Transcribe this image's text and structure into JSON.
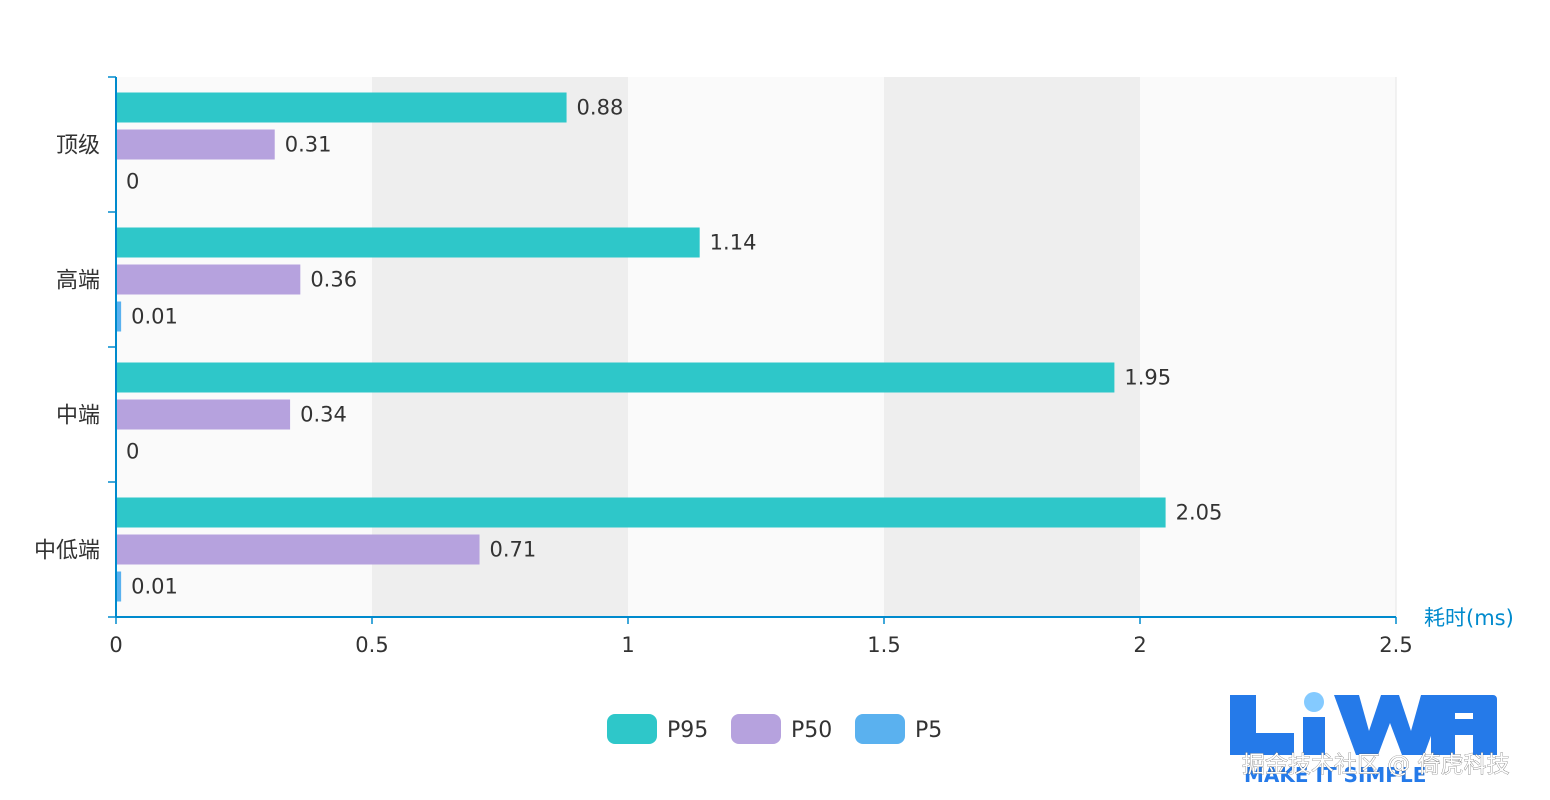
{
  "chart_data": {
    "type": "bar",
    "orientation": "horizontal",
    "categories": [
      "顶级",
      "高端",
      "中端",
      "中低端"
    ],
    "series": [
      {
        "name": "P95",
        "values": [
          0.88,
          1.14,
          1.95,
          2.05
        ],
        "color": "#2ec7c9"
      },
      {
        "name": "P50",
        "values": [
          0.31,
          0.36,
          0.34,
          0.71
        ],
        "color": "#b6a2de"
      },
      {
        "name": "P5",
        "values": [
          0,
          0.01,
          0,
          0.01
        ],
        "color": "#5ab1ef"
      }
    ],
    "data_labels": [
      [
        "0.88",
        "1.14",
        "1.95",
        "2.05"
      ],
      [
        "0.31",
        "0.36",
        "0.34",
        "0.71"
      ],
      [
        "0",
        "0.01",
        "0",
        "0.01"
      ]
    ],
    "xlabel": "耗时(ms)",
    "ylabel": "",
    "xlim": [
      0,
      2.5
    ],
    "x_ticks": [
      0,
      0.5,
      1,
      1.5,
      2,
      2.5
    ],
    "x_tick_labels": [
      "0",
      "0.5",
      "1",
      "1.5",
      "2",
      "2.5"
    ],
    "grid": "alternating split areas",
    "legend_position": "bottom",
    "axis_color": "#008acd",
    "split_area_colors": [
      "#fafafa",
      "#eeeeee"
    ]
  },
  "watermark": {
    "logo_text": "LiWA",
    "slogan": "MAKE IT SIMPLE",
    "credit": "掘金技术社区 @ 倚虎科技",
    "logo_color": "#1a73e8"
  }
}
